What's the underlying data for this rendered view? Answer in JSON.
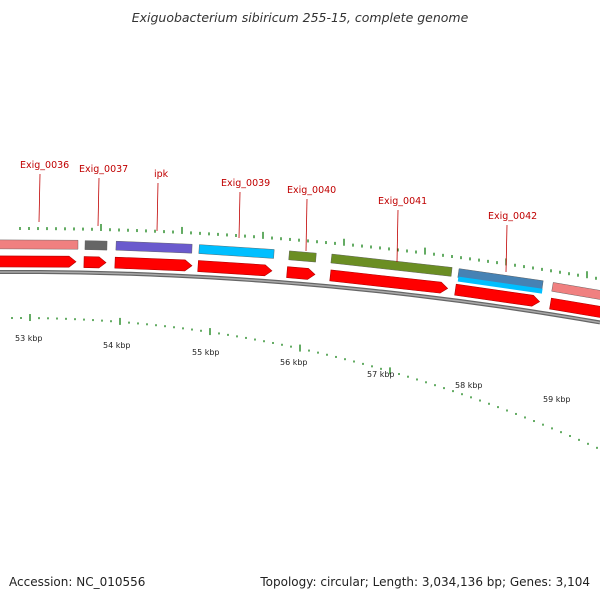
{
  "title": "Exiguobacterium sibiricum 255-15, complete genome",
  "footer": {
    "accession": "Accession: NC_010556",
    "info": "Topology: circular; Length: 3,034,136 bp; Genes: 3,104"
  },
  "colors": {
    "gene_label": "#c00000",
    "strand_arrow": "#ff0000",
    "backbone": "#888888",
    "tick": "#228822"
  },
  "gene_labels": [
    "Exig_0036",
    "Exig_0037",
    "ipk",
    "Exig_0039",
    "Exig_0040",
    "Exig_0041",
    "Exig_0042"
  ],
  "kbp_labels": [
    "53 kbp",
    "54 kbp",
    "55 kbp",
    "56 kbp",
    "57 kbp",
    "58 kbp",
    "59 kbp"
  ],
  "feature_bars": [
    {
      "color": "#f08080"
    },
    {
      "color": "#666666"
    },
    {
      "color": "#6a5acd"
    },
    {
      "color": "#00bfff"
    },
    {
      "color": "#6b8e23"
    },
    {
      "color": "#6b8e23"
    },
    {
      "color": "#4682b4"
    },
    {
      "color": "#f08080"
    }
  ]
}
